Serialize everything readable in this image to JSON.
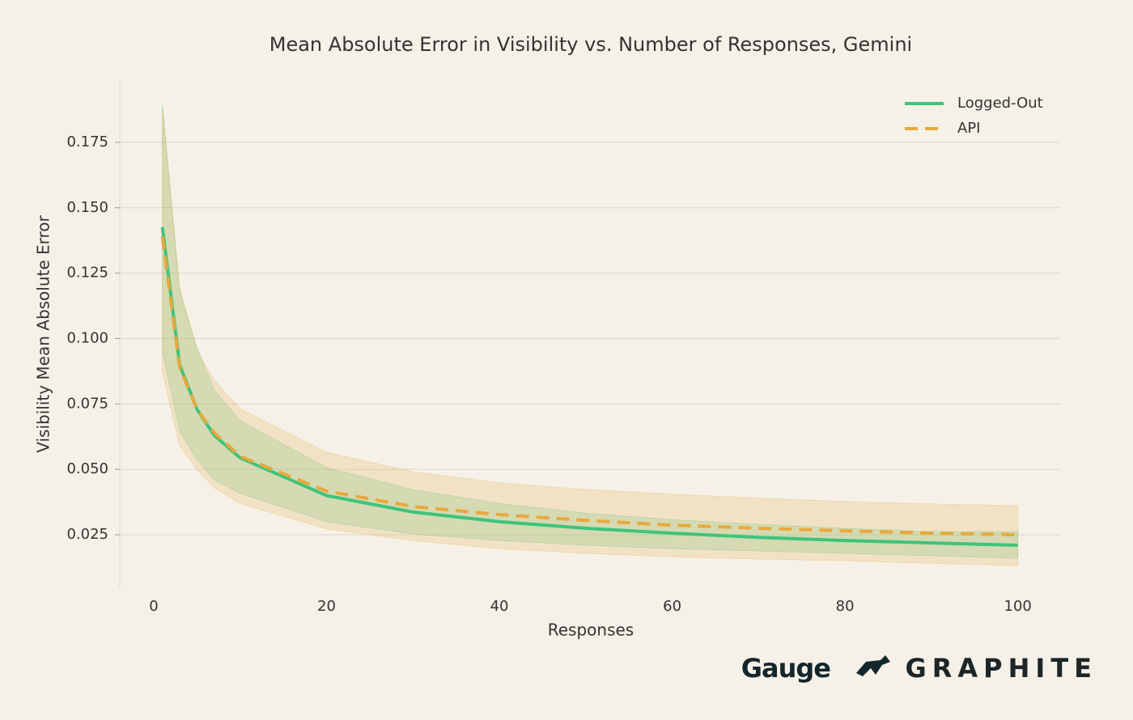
{
  "chart_data": {
    "type": "line",
    "title": "Mean Absolute Error in Visibility vs. Number of Responses, Gemini",
    "x_label": "Responses",
    "y_label": "Visibility Mean Absolute Error",
    "x": [
      1,
      3,
      5,
      7,
      10,
      20,
      30,
      40,
      50,
      60,
      70,
      80,
      90,
      100
    ],
    "series": [
      {
        "name": "Logged-Out",
        "color": "#3fc47a",
        "dash": false,
        "values": [
          0.1425,
          0.09,
          0.073,
          0.063,
          0.0544,
          0.04,
          0.0337,
          0.03,
          0.0275,
          0.0256,
          0.024,
          0.0228,
          0.0219,
          0.021
        ],
        "upper": [
          0.1898,
          0.118,
          0.0965,
          0.0803,
          0.0686,
          0.0507,
          0.0423,
          0.037,
          0.0333,
          0.0308,
          0.029,
          0.0275,
          0.0262,
          0.0262
        ],
        "lower": [
          0.0949,
          0.0646,
          0.0537,
          0.046,
          0.0408,
          0.03,
          0.0253,
          0.0228,
          0.021,
          0.0197,
          0.0188,
          0.0179,
          0.017,
          0.016
        ]
      },
      {
        "name": "API",
        "color": "#e8a93c",
        "dash": true,
        "values": [
          0.139,
          0.089,
          0.073,
          0.064,
          0.055,
          0.0417,
          0.0358,
          0.0327,
          0.0305,
          0.0287,
          0.0275,
          0.0265,
          0.0256,
          0.025
        ],
        "upper": [
          0.188,
          0.1196,
          0.0955,
          0.084,
          0.0732,
          0.0565,
          0.0491,
          0.0448,
          0.0423,
          0.0405,
          0.039,
          0.0377,
          0.0368,
          0.0361
        ],
        "lower": [
          0.0872,
          0.059,
          0.05,
          0.0429,
          0.037,
          0.0272,
          0.0228,
          0.0197,
          0.0179,
          0.0166,
          0.0157,
          0.0151,
          0.0141,
          0.0132
        ]
      }
    ],
    "xlim": [
      -3.93,
      104.9
    ],
    "ylim": [
      0.0043,
      0.1994
    ],
    "xticks": [
      0,
      20,
      40,
      60,
      80,
      100
    ],
    "yticks": [
      {
        "value": 0.025,
        "label": "0.025"
      },
      {
        "value": 0.05,
        "label": "0.050"
      },
      {
        "value": 0.075,
        "label": "0.075"
      },
      {
        "value": 0.1,
        "label": "0.100"
      },
      {
        "value": 0.125,
        "label": "0.125"
      },
      {
        "value": 0.15,
        "label": "0.150"
      },
      {
        "value": 0.175,
        "label": "0.175"
      }
    ],
    "grid": true,
    "legend": "upper-right"
  },
  "branding": {
    "logos": [
      "Gauge",
      "GRAPHITE"
    ]
  }
}
